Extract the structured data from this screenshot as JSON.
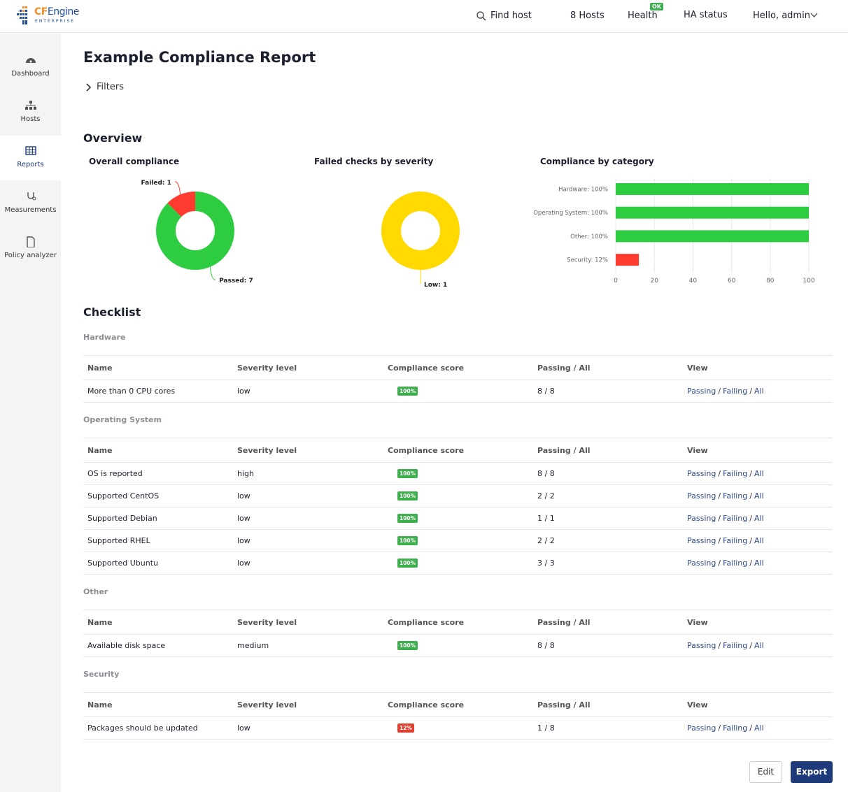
{
  "header": {
    "logo_cf": "CF",
    "logo_engine": "Engine",
    "logo_sub": "ENTERPRISE",
    "find_host": "Find host",
    "hosts": "8 Hosts",
    "health": "Health",
    "health_badge": "OK",
    "ha_status": "HA status",
    "user": "Hello, admin"
  },
  "sidebar": {
    "items": [
      "Dashboard",
      "Hosts",
      "Reports",
      "Measurements",
      "Policy analyzer"
    ],
    "selected": 2
  },
  "page": {
    "title": "Example Compliance Report",
    "filters": "Filters",
    "overview": "Overview"
  },
  "chart_data": [
    {
      "type": "pie",
      "title": "Overall compliance",
      "values": [
        1,
        7
      ],
      "value_labels": [
        "Failed: 1",
        "Passed: 7"
      ],
      "colors": [
        "#ff3b30",
        "#2ecc40"
      ]
    },
    {
      "type": "pie",
      "title": "Failed checks by severity",
      "values": [
        1
      ],
      "value_labels": [
        "Low: 1"
      ],
      "colors": [
        "#ffd900"
      ]
    },
    {
      "type": "hbar",
      "title": "Compliance by category",
      "categories": [
        "Hardware: 100%",
        "Operating System: 100%",
        "Other: 100%",
        "Security: 12%"
      ],
      "values": [
        100,
        100,
        100,
        12
      ],
      "colors": [
        "#2ecc40",
        "#2ecc40",
        "#2ecc40",
        "#ff3b30"
      ],
      "xlim": [
        0,
        100
      ],
      "xticks": [
        0,
        20,
        40,
        60,
        80,
        100
      ],
      "grid": true
    }
  ],
  "checklist": {
    "title": "Checklist",
    "columns": [
      "Name",
      "Severity level",
      "Compliance score",
      "Passing / All",
      "View"
    ],
    "view_links": [
      "Passing",
      "Failing",
      "All"
    ],
    "view_separator": "/",
    "groups": [
      {
        "name": "Hardware",
        "rows": [
          {
            "name": "More than 0 CPU cores",
            "severity": "low",
            "score": "100%",
            "score_color": "#3fae4f",
            "passing": "8 / 8"
          }
        ]
      },
      {
        "name": "Operating System",
        "rows": [
          {
            "name": "OS is reported",
            "severity": "high",
            "score": "100%",
            "score_color": "#3fae4f",
            "passing": "8 / 8"
          },
          {
            "name": "Supported CentOS",
            "severity": "low",
            "score": "100%",
            "score_color": "#3fae4f",
            "passing": "2 / 2"
          },
          {
            "name": "Supported Debian",
            "severity": "low",
            "score": "100%",
            "score_color": "#3fae4f",
            "passing": "1 / 1"
          },
          {
            "name": "Supported RHEL",
            "severity": "low",
            "score": "100%",
            "score_color": "#3fae4f",
            "passing": "2 / 2"
          },
          {
            "name": "Supported Ubuntu",
            "severity": "low",
            "score": "100%",
            "score_color": "#3fae4f",
            "passing": "3 / 3"
          }
        ]
      },
      {
        "name": "Other",
        "rows": [
          {
            "name": "Available disk space",
            "severity": "medium",
            "score": "100%",
            "score_color": "#3fae4f",
            "passing": "8 / 8"
          }
        ]
      },
      {
        "name": "Security",
        "rows": [
          {
            "name": "Packages should be updated",
            "severity": "low",
            "score": "12%",
            "score_color": "#e0402f",
            "passing": "1 / 8"
          }
        ]
      }
    ]
  },
  "actions": {
    "edit": "Edit",
    "export": "Export"
  }
}
